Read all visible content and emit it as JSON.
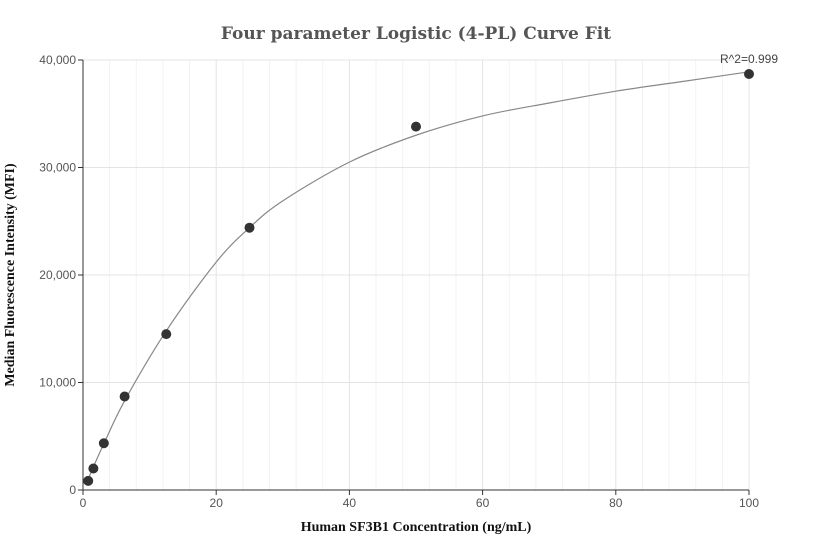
{
  "chart_data": {
    "type": "scatter",
    "title": "Four parameter Logistic (4-PL) Curve Fit",
    "xlabel": "Human SF3B1 Concentration (ng/mL)",
    "ylabel": "Median Fluorescence Intensity (MFI)",
    "xlim": [
      0,
      100
    ],
    "ylim": [
      0,
      40000
    ],
    "x_ticks": [
      0,
      20,
      40,
      60,
      80,
      100
    ],
    "y_ticks": [
      0,
      10000,
      20000,
      30000,
      40000
    ],
    "x_tick_labels": [
      "0",
      "20",
      "40",
      "60",
      "80",
      "100"
    ],
    "y_tick_labels": [
      "0",
      "10,000",
      "20,000",
      "30,000",
      "40,000"
    ],
    "grid": true,
    "annotation": "R^2=0.999",
    "points": {
      "x": [
        0.78,
        1.56,
        3.13,
        6.25,
        12.5,
        25,
        50,
        100
      ],
      "y": [
        850,
        2000,
        4350,
        8700,
        14500,
        24400,
        33800,
        38700
      ]
    },
    "fit_curve": {
      "model": "4PL",
      "x": [
        0.78,
        1.56,
        3.13,
        6.25,
        12.5,
        20,
        25,
        30,
        40,
        50,
        60,
        70,
        80,
        90,
        100
      ],
      "y": [
        1000,
        2150,
        4300,
        8300,
        14800,
        21200,
        24400,
        26900,
        30500,
        33000,
        34800,
        36000,
        37100,
        38000,
        38900
      ]
    },
    "colors": {
      "points": "#333333",
      "fit_line": "#888888",
      "grid": "#e4e4e4",
      "title": "#555555"
    }
  }
}
